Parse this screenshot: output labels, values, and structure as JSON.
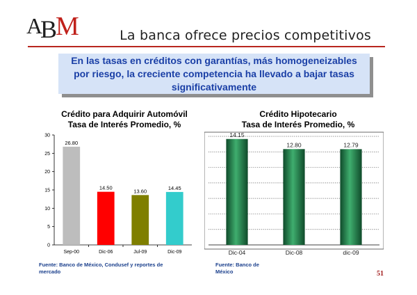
{
  "header": {
    "logo_text": "ABM",
    "title": "La banca ofrece precios competitivos"
  },
  "callout": {
    "text": "En las tasas en créditos con garantías, más homogeneizables por riesgo, la creciente competencia ha llevado a bajar tasas significativamente"
  },
  "colors": {
    "accent_red": "#b8261e",
    "callout_bg": "#d6e3f7",
    "callout_text": "#1a3fa6",
    "bar_sep00": "#bdbdbd",
    "bar_dic06": "#ff0000",
    "bar_jul09": "#7f7f00",
    "bar_dic09": "#33cccc",
    "bar_green": "#1f7a4a"
  },
  "chart_data": [
    {
      "type": "bar",
      "title_lines": [
        "Crédito para Adquirir Automóvil",
        "Tasa de Interés Promedio, %"
      ],
      "categories": [
        "Sep-00",
        "Dic-06",
        "Jul-09",
        "Dic-09"
      ],
      "values": [
        26.8,
        14.5,
        13.6,
        14.45
      ],
      "value_labels": [
        "26.80",
        "14.50",
        "13.60",
        "14.45"
      ],
      "bar_colors": [
        "#bdbdbd",
        "#ff0000",
        "#7f7f00",
        "#33cccc"
      ],
      "ylim": [
        0,
        30
      ],
      "yticks": [
        0,
        5,
        10,
        15,
        20,
        25,
        30
      ],
      "grid": false,
      "source": "Fuente: Banco de México, Condusef y reportes de mercado"
    },
    {
      "type": "bar",
      "title_lines": [
        "Crédito Hipotecario",
        "Tasa de Interés Promedio, %"
      ],
      "categories": [
        "Dic-04",
        "Dic-08",
        "dic-09"
      ],
      "values": [
        14.15,
        12.8,
        12.79
      ],
      "value_labels": [
        "14.15",
        "12.80",
        "12.79"
      ],
      "bar_colors": [
        "#1f7a4a",
        "#1f7a4a",
        "#1f7a4a"
      ],
      "ylim": [
        0,
        14.5
      ],
      "grid": true,
      "y_axis_visible": false,
      "source": "Fuente: Banco de México"
    }
  ],
  "footer": {
    "page_number": "51"
  }
}
